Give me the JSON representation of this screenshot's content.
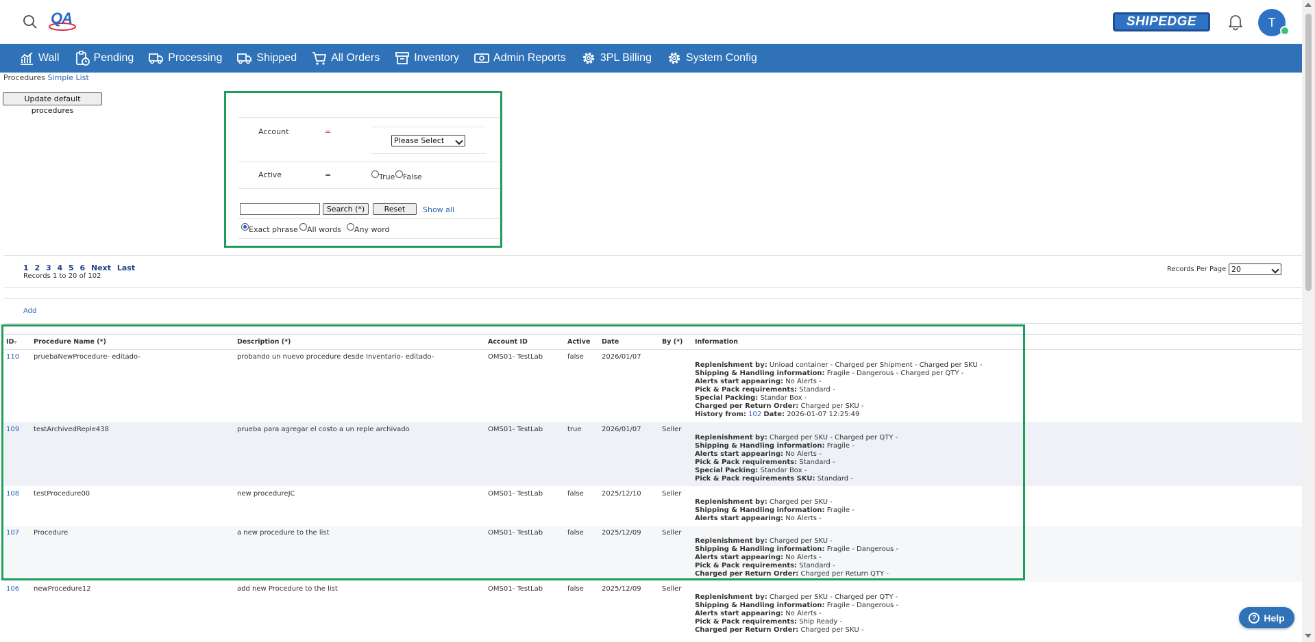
{
  "header": {
    "logo_text": "QA",
    "brand": "SHIPEDGE",
    "avatar_initial": "T"
  },
  "nav": [
    {
      "label": "Wall",
      "icon": "chart-line-icon"
    },
    {
      "label": "Pending",
      "icon": "clipboard-clock-icon"
    },
    {
      "label": "Processing",
      "icon": "truck-fast-icon"
    },
    {
      "label": "Shipped",
      "icon": "truck-icon"
    },
    {
      "label": "All Orders",
      "icon": "cart-icon"
    },
    {
      "label": "Inventory",
      "icon": "archive-box-icon"
    },
    {
      "label": "Admin Reports",
      "icon": "money-icon"
    },
    {
      "label": "3PL Billing",
      "icon": "gear-icon"
    },
    {
      "label": "System Config",
      "icon": "gear-icon"
    }
  ],
  "breadcrumb": {
    "section": "Procedures",
    "view": "Simple List"
  },
  "update_button": "Update default procedures",
  "filter": {
    "account_label": "Account",
    "account_op": "=",
    "account_select": "Please Select",
    "active_label": "Active",
    "active_op": "=",
    "active_true": "True",
    "active_false": "False",
    "search_value": "",
    "search_button": "Search (*)",
    "reset_button": "Reset",
    "show_all": "Show all",
    "match_exact": "Exact phrase",
    "match_all": "All words",
    "match_any": "Any word"
  },
  "pagination": {
    "pages": [
      "1",
      "2",
      "3",
      "4",
      "5",
      "6"
    ],
    "next": "Next",
    "last": "Last",
    "records_text": "Records 1 to 20 of 102",
    "per_page_label": "Records Per Page",
    "per_page_value": "20"
  },
  "add_link": "Add",
  "columns": {
    "id": "ID",
    "name": "Procedure Name (*)",
    "description": "Description (*)",
    "account": "Account ID",
    "active": "Active",
    "date": "Date",
    "by": "By (*)",
    "information": "Information"
  },
  "rows": [
    {
      "id": "110",
      "name": "pruebaNewProcedure- editado-",
      "description": "probando un nuevo procedure desde Inventario- editado-",
      "account": "OMS01- TestLab",
      "active": "false",
      "date": "2026/01/07",
      "by": "",
      "info": [
        [
          "Replenishment by:",
          "Unload container - Charged per Shipment - Charged per SKU -"
        ],
        [
          "Shipping & Handling information:",
          "Fragile - Dangerous - Charged per QTY -"
        ],
        [
          "Alerts start appearing:",
          "No Alerts -"
        ],
        [
          "Pick & Pack requirements:",
          "Standard -"
        ],
        [
          "Special Packing:",
          "Standar Box -"
        ],
        [
          "Charged per Return Order:",
          "Charged per SKU -"
        ]
      ],
      "history": {
        "label": "History from:",
        "ref": "102",
        "date_label": "Date:",
        "date": "2026-01-07 12:25:49"
      }
    },
    {
      "id": "109",
      "name": "testArchivedReple438",
      "description": "prueba para agregar el costo a un reple archivado",
      "account": "OMS01- TestLab",
      "active": "true",
      "date": "2026/01/07",
      "by": "Seller",
      "info": [
        [
          "Replenishment by:",
          "Charged per SKU - Charged per QTY -"
        ],
        [
          "Shipping & Handling information:",
          "Fragile -"
        ],
        [
          "Alerts start appearing:",
          "No Alerts -"
        ],
        [
          "Pick & Pack requirements:",
          "Standard -"
        ],
        [
          "Special Packing:",
          "Standar Box -"
        ],
        [
          "Pick & Pack requirements SKU:",
          "Standard -"
        ]
      ]
    },
    {
      "id": "108",
      "name": "testProcedure00",
      "description": "new procedureJC",
      "account": "OMS01- TestLab",
      "active": "false",
      "date": "2025/12/10",
      "by": "Seller",
      "info": [
        [
          "Replenishment by:",
          "Charged per SKU -"
        ],
        [
          "Shipping & Handling information:",
          "Fragile -"
        ],
        [
          "Alerts start appearing:",
          "No Alerts -"
        ]
      ]
    },
    {
      "id": "107",
      "name": "Procedure",
      "description": "a new procedure to the list",
      "account": "OMS01- TestLab",
      "active": "false",
      "date": "2025/12/09",
      "by": "Seller",
      "info": [
        [
          "Replenishment by:",
          "Charged per SKU -"
        ],
        [
          "Shipping & Handling information:",
          "Fragile - Dangerous -"
        ],
        [
          "Alerts start appearing:",
          "No Alerts -"
        ],
        [
          "Pick & Pack requirements:",
          "Standard -"
        ],
        [
          "Charged per Return Order:",
          "Charged per Return QTY -"
        ]
      ]
    },
    {
      "id": "106",
      "name": "newProcedure12",
      "description": "add new Procedure to the list",
      "account": "OMS01- TestLab",
      "active": "false",
      "date": "2025/12/09",
      "by": "Seller",
      "info": [
        [
          "Replenishment by:",
          "Charged per SKU - Charged per QTY -"
        ],
        [
          "Shipping & Handling information:",
          "Fragile - Dangerous -"
        ],
        [
          "Alerts start appearing:",
          "No Alerts -"
        ],
        [
          "Pick & Pack requirements:",
          "Ship Ready -"
        ],
        [
          "Charged per Return Order:",
          "Charged per SKU -"
        ]
      ]
    }
  ],
  "help_label": "Help"
}
